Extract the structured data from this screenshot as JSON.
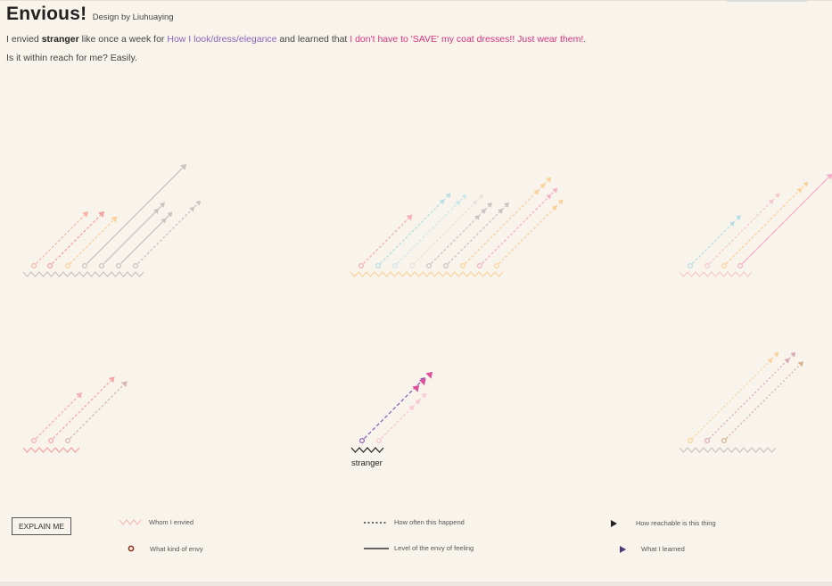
{
  "header": {
    "title": "Envious!",
    "credit": "Design by Liuhuaying"
  },
  "intro": {
    "p1_before": "I envied ",
    "p1_person": "stranger",
    "p1_mid1": " like once a week for ",
    "p1_thing": "How I look/dress/elegance",
    "p1_mid2": " and learned that ",
    "p1_lesson": "I don't have to 'SAVE' my coat dresses!! Just wear them!",
    "p1_end": ".",
    "p2": "Is it within reach for me? Easily."
  },
  "labels": {
    "stranger": "stranger"
  },
  "controls": {
    "explain": "EXPLAIN ME"
  },
  "legend": {
    "whom": "Whom I envied",
    "kind": "What kind of envy",
    "often": "How often this happend",
    "level": "Level of the envy of feeling",
    "reachable": "How reachable is this thing",
    "learned": "What I learned"
  },
  "colors": {
    "background": "#f8f4ec",
    "purple": "#8c62b8",
    "magenta": "#d8337e",
    "pink": "#f4b0b8",
    "peach": "#fbd19a",
    "blue": "#b8dde4",
    "gray": "#c8c2c2",
    "light_pink": "#f6c8d2",
    "mauve": "#d9a8b8"
  }
}
